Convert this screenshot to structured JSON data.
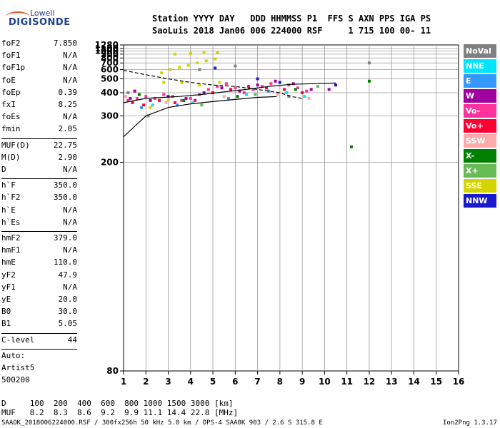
{
  "logo": {
    "line1": "Lowell",
    "line2": "DIGISONDE"
  },
  "header": {
    "line1": "Station YYYY DAY   DDD HHMMSS P1  FFS S AXN PPS IGA PS",
    "line2": "SaoLuis 2018 Jan06 006 224000 RSF     1 715 100 00- 11"
  },
  "params_a": [
    {
      "key": "foF2",
      "val": "7.850"
    },
    {
      "key": "foF1",
      "val": "N/A"
    },
    {
      "key": "foF1p",
      "val": "N/A"
    },
    {
      "key": "foE",
      "val": "N/A"
    },
    {
      "key": "foEp",
      "val": "0.39"
    },
    {
      "key": "fxI",
      "val": "8.25"
    },
    {
      "key": "foEs",
      "val": "N/A"
    },
    {
      "key": "fmin",
      "val": "2.05"
    }
  ],
  "params_b": [
    {
      "key": "MUF(D)",
      "val": "22.75"
    },
    {
      "key": "M(D)",
      "val": "2.90"
    },
    {
      "key": "D",
      "val": "N/A"
    }
  ],
  "params_c": [
    {
      "key": "h`F",
      "val": "350.0"
    },
    {
      "key": "h`F2",
      "val": "350.0"
    },
    {
      "key": "h`E",
      "val": "N/A"
    },
    {
      "key": "h`Es",
      "val": "N/A"
    }
  ],
  "params_d": [
    {
      "key": "hmF2",
      "val": "379.0"
    },
    {
      "key": "hmF1",
      "val": "N/A"
    },
    {
      "key": "hmE",
      "val": "110.0"
    },
    {
      "key": "yF2",
      "val": "47.9"
    },
    {
      "key": "yF1",
      "val": "N/A"
    },
    {
      "key": "yE",
      "val": "20.0"
    },
    {
      "key": "B0",
      "val": "30.0"
    },
    {
      "key": "B1",
      "val": "5.05"
    }
  ],
  "clevel": {
    "key": "C-level",
    "val": "44"
  },
  "auto": [
    "Auto:",
    "Artist5",
    "500200"
  ],
  "legend": [
    {
      "label": "NoVal",
      "color": "#808080"
    },
    {
      "label": "NNE",
      "color": "#00e5ff"
    },
    {
      "label": "E",
      "color": "#3399ff"
    },
    {
      "label": "W",
      "color": "#a000a0"
    },
    {
      "label": "Vo-",
      "color": "#ff3399"
    },
    {
      "label": "Vo+",
      "color": "#ff0033"
    },
    {
      "label": "SSW",
      "color": "#ffaaaa"
    },
    {
      "label": "X-",
      "color": "#008000"
    },
    {
      "label": "X+",
      "color": "#66bb55"
    },
    {
      "label": "SSE",
      "color": "#d4d400"
    },
    {
      "label": "NNW",
      "color": "#1a1acc"
    }
  ],
  "bottom": {
    "d_line": "D     100  200  400  600  800 1000 1500 3000 [km]",
    "muf_line": "MUF   8.2  8.3  8.6  9.2  9.9 11.1 14.4 22.8 [MHz]",
    "footer_left": "SAAOK_2018006224000.RSF / 300fx256h 50 kHz 5.0 km / DPS-4 SAA0K 903 / 2.6 S 315.8 E",
    "footer_right": "Ion2Png 1.3.17"
  },
  "chart_data": {
    "type": "scatter",
    "xlabel": "",
    "ylabel": "",
    "xlim": [
      1,
      16
    ],
    "ylim": [
      80,
      1280
    ],
    "y_scale": "reciprocal",
    "x_ticks": [
      1,
      2,
      3,
      4,
      5,
      6,
      7,
      8,
      9,
      10,
      11,
      12,
      13,
      14,
      15,
      16
    ],
    "y_ticks": [
      80,
      200,
      300,
      400,
      500,
      600,
      700,
      800,
      900,
      1000,
      1100,
      1280
    ],
    "grid": true,
    "series": [
      {
        "name": "SSE",
        "color": "#d4d400",
        "points": [
          [
            2.7,
            560
          ],
          [
            3.1,
            600
          ],
          [
            3.5,
            630
          ],
          [
            3.9,
            660
          ],
          [
            4.3,
            700
          ],
          [
            4.7,
            740
          ],
          [
            5.1,
            780
          ],
          [
            3.3,
            900
          ],
          [
            4.0,
            920
          ],
          [
            4.6,
            940
          ],
          [
            5.2,
            950
          ],
          [
            2.8,
            470
          ],
          [
            3.6,
            470
          ],
          [
            4.4,
            450
          ],
          [
            5.3,
            470
          ],
          [
            3.0,
            360
          ],
          [
            2.2,
            330
          ]
        ]
      },
      {
        "name": "Vo-",
        "color": "#ff3399",
        "points": [
          [
            1.2,
            360
          ],
          [
            1.6,
            370
          ],
          [
            2.0,
            380
          ],
          [
            2.4,
            370
          ],
          [
            2.8,
            390
          ],
          [
            3.2,
            380
          ],
          [
            3.6,
            360
          ],
          [
            4.0,
            370
          ],
          [
            4.4,
            390
          ],
          [
            4.8,
            420
          ],
          [
            5.2,
            440
          ],
          [
            5.6,
            460
          ],
          [
            6.0,
            430
          ],
          [
            6.4,
            400
          ],
          [
            6.8,
            420
          ],
          [
            7.2,
            440
          ],
          [
            7.6,
            460
          ],
          [
            8.0,
            470
          ],
          [
            8.4,
            450
          ],
          [
            8.8,
            430
          ],
          [
            9.2,
            410
          ]
        ]
      },
      {
        "name": "Vo+",
        "color": "#ff0033",
        "points": [
          [
            1.4,
            350
          ],
          [
            1.9,
            340
          ],
          [
            2.6,
            360
          ],
          [
            3.3,
            350
          ],
          [
            4.2,
            360
          ],
          [
            5.0,
            400
          ],
          [
            5.8,
            420
          ],
          [
            6.6,
            440
          ],
          [
            7.4,
            430
          ],
          [
            8.2,
            420
          ],
          [
            9.0,
            400
          ]
        ]
      },
      {
        "name": "W",
        "color": "#a000a0",
        "points": [
          [
            1.3,
            370
          ],
          [
            2.2,
            360
          ],
          [
            3.0,
            380
          ],
          [
            3.8,
            370
          ],
          [
            4.6,
            400
          ],
          [
            5.4,
            430
          ],
          [
            6.2,
            410
          ],
          [
            7.0,
            450
          ],
          [
            7.8,
            480
          ],
          [
            8.6,
            460
          ],
          [
            9.4,
            420
          ],
          [
            10.2,
            420
          ],
          [
            1.5,
            410
          ]
        ]
      },
      {
        "name": "NNE",
        "color": "#00e5ff",
        "points": [
          [
            2.3,
            340
          ],
          [
            4.1,
            350
          ],
          [
            6.5,
            390
          ],
          [
            8.3,
            400
          ],
          [
            9.1,
            380
          ]
        ]
      },
      {
        "name": "E",
        "color": "#3399ff",
        "points": [
          [
            1.8,
            330
          ],
          [
            3.4,
            340
          ],
          [
            5.7,
            370
          ],
          [
            7.5,
            410
          ]
        ]
      },
      {
        "name": "SSW",
        "color": "#ffaaaa",
        "points": [
          [
            1.1,
            380
          ],
          [
            2.9,
            350
          ],
          [
            5.5,
            380
          ],
          [
            7.9,
            390
          ],
          [
            9.3,
            370
          ]
        ]
      },
      {
        "name": "X-",
        "color": "#008000",
        "points": [
          [
            1.7,
            390
          ],
          [
            3.7,
            360
          ],
          [
            6.1,
            380
          ],
          [
            8.7,
            420
          ],
          [
            11.2,
            225
          ],
          [
            12.0,
            480
          ]
        ]
      },
      {
        "name": "X+",
        "color": "#66bb55",
        "points": [
          [
            2.1,
            300
          ],
          [
            4.5,
            340
          ],
          [
            6.9,
            390
          ],
          [
            9.7,
            440
          ]
        ]
      },
      {
        "name": "NNW",
        "color": "#1a1acc",
        "points": [
          [
            5.1,
            620
          ],
          [
            7.0,
            500
          ],
          [
            8.0,
            470
          ],
          [
            10.5,
            450
          ]
        ]
      },
      {
        "name": "NoVal",
        "color": "#808080",
        "points": [
          [
            1.2,
            400
          ],
          [
            4.4,
            600
          ],
          [
            6.0,
            650
          ],
          [
            8.4,
            380
          ],
          [
            12.0,
            700
          ]
        ]
      }
    ],
    "profile_dashed": [
      [
        1.0,
        590
      ],
      [
        2.0,
        540
      ],
      [
        3.0,
        500
      ],
      [
        4.0,
        470
      ],
      [
        5.0,
        450
      ],
      [
        6.0,
        440
      ],
      [
        7.0,
        420
      ],
      [
        8.0,
        400
      ],
      [
        8.5,
        380
      ],
      [
        9.0,
        370
      ]
    ],
    "profile_solid_1": [
      [
        1.0,
        245
      ],
      [
        1.5,
        270
      ],
      [
        2.0,
        300
      ],
      [
        3.0,
        330
      ],
      [
        4.0,
        345
      ],
      [
        5.0,
        355
      ],
      [
        6.0,
        365
      ],
      [
        7.0,
        375
      ],
      [
        7.85,
        379
      ]
    ],
    "profile_solid_2": [
      [
        1.0,
        350
      ],
      [
        1.5,
        360
      ],
      [
        2.0,
        370
      ],
      [
        2.8,
        375
      ],
      [
        3.5,
        380
      ],
      [
        4.5,
        390
      ],
      [
        5.5,
        405
      ],
      [
        6.5,
        420
      ],
      [
        7.5,
        440
      ],
      [
        8.5,
        455
      ],
      [
        9.5,
        460
      ],
      [
        10.5,
        465
      ]
    ]
  }
}
